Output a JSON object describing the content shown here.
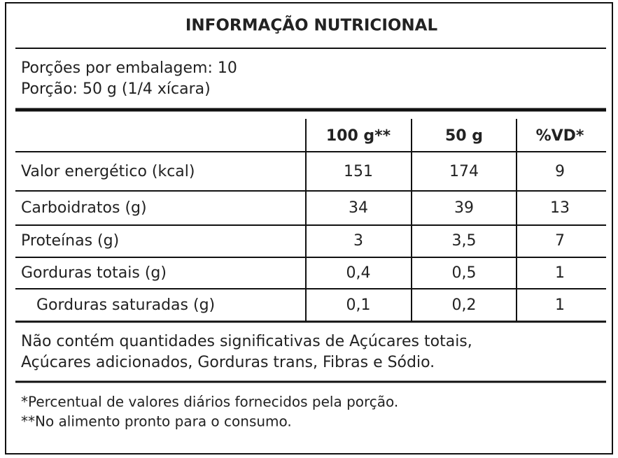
{
  "title": "INFORMAÇÃO NUTRICIONAL",
  "servings": [
    "Porções por embalagem: 10",
    "Porção: 50 g (1/4 xícara)"
  ],
  "table": {
    "header": [
      "100 g**",
      "50 g",
      "%VD*"
    ],
    "rows": [
      [
        "Valor energético (kcal)",
        "151",
        "174",
        "9"
      ],
      [
        "Carboidratos (g)",
        "34",
        "39",
        "13"
      ],
      [
        "Proteínas (g)",
        "3",
        "3,5",
        "7"
      ],
      [
        "Gorduras totais (g)",
        "0,4",
        "0,5",
        "1"
      ],
      [
        "Gorduras saturadas (g)",
        "0,1",
        "0,2",
        "1"
      ]
    ]
  },
  "note": [
    "Não contém quantidades significativas de Açúcares totais,",
    "Açúcares adicionados, Gorduras trans, Fibras e Sódio."
  ],
  "footnotes": [
    "*Percentual de valores diários fornecidos pela porção.",
    "**No alimento pronto para o consumo."
  ]
}
